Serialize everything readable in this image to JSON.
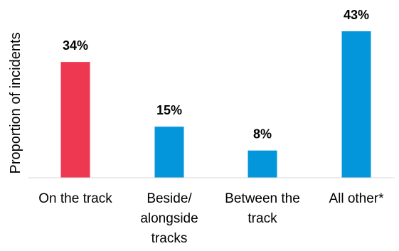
{
  "chart_data": {
    "type": "bar",
    "ylabel": "Proportion of incidents",
    "categories": [
      [
        "On the track"
      ],
      [
        "Beside/",
        "alongside",
        "tracks"
      ],
      [
        "Between the",
        "track"
      ],
      [
        "All other*"
      ]
    ],
    "values": [
      34,
      15,
      8,
      43
    ],
    "data_labels": [
      "34%",
      "15%",
      "8%",
      "43%"
    ],
    "colors": [
      "#EE3751",
      "#0396DB",
      "#0396DB",
      "#0396DB"
    ],
    "ylim": [
      0,
      43
    ],
    "grid": false,
    "legend": "none"
  }
}
